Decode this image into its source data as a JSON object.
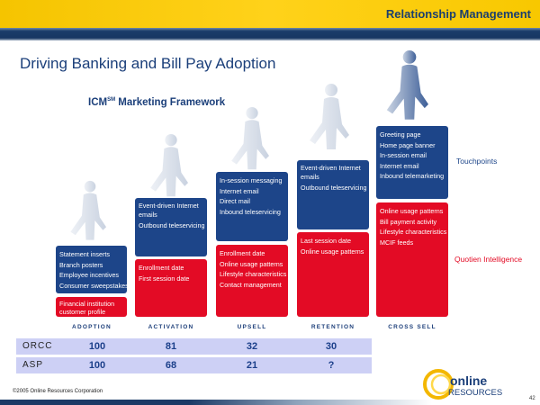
{
  "header": {
    "section": "Relationship Management"
  },
  "title": "Driving Banking and Bill Pay Adoption",
  "framework": {
    "name": "ICM",
    "sup": "SM",
    "rest": " Marketing Framework"
  },
  "stages": [
    {
      "label": "ADOPTION",
      "touchpoints": [
        "Statement inserts",
        "Branch posters",
        "Employee incentives",
        "Consumer sweepstakes"
      ],
      "intelligence": [
        "Financial institution",
        "customer profile"
      ]
    },
    {
      "label": "ACTIVATION",
      "touchpoints": [
        "Event-driven Internet",
        "emails",
        "Outbound teleservicing"
      ],
      "intelligence": [
        "Enrollment date",
        "First session date"
      ]
    },
    {
      "label": "UPSELL",
      "touchpoints": [
        "In-session messaging",
        "Internet email",
        "Direct mail",
        "Inbound teleservicing"
      ],
      "intelligence": [
        "Enrollment date",
        "Online usage patterns",
        "Lifestyle characteristics",
        "Contact management"
      ]
    },
    {
      "label": "RETENTION",
      "touchpoints": [
        "Event-driven Internet",
        "emails",
        "Outbound teleservicing"
      ],
      "intelligence": [
        "Last session date",
        "Online usage patterns"
      ]
    },
    {
      "label": "CROSS SELL",
      "touchpoints": [
        "Greeting page",
        "Home page banner",
        "In-session email",
        "Internet email",
        "Inbound telemarketing"
      ],
      "intelligence": [
        "Online usage patterns",
        "Bill payment activity",
        "Lifestyle characteristics",
        "MCIF feeds"
      ]
    }
  ],
  "legend": {
    "touchpoints": "Touchpoints",
    "intelligence": "Quotien Intelligence"
  },
  "table": [
    {
      "name": "ORCC",
      "values": [
        "100",
        "81",
        "32",
        "30"
      ]
    },
    {
      "name": "ASP",
      "values": [
        "100",
        "68",
        "21",
        "?"
      ]
    }
  ],
  "footer": {
    "copyright": "©2005 Online Resources Corporation",
    "page": "42",
    "logo_top": "online",
    "logo_bottom": "RESOURCES"
  },
  "colors": {
    "blue": "#1d4589",
    "red": "#e30b25",
    "yellow": "#f5c400"
  }
}
